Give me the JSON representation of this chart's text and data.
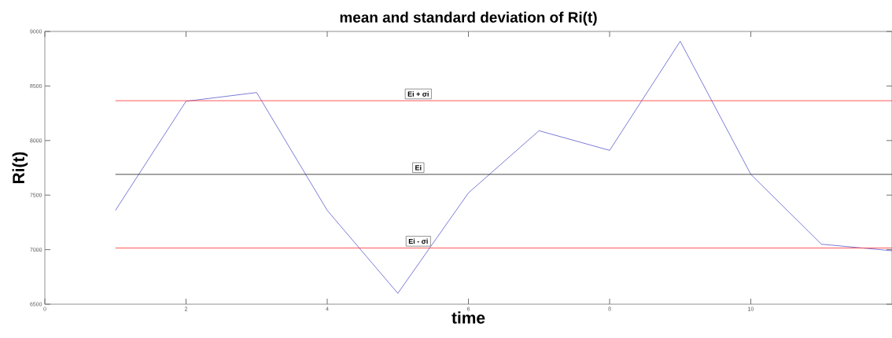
{
  "chart_data": {
    "type": "line",
    "title": "mean and standard deviation of Ri(t)",
    "xlabel": "time",
    "ylabel": "Ri(t)",
    "x": [
      1,
      2,
      3,
      4,
      5,
      6,
      7,
      8,
      9,
      10,
      11,
      12
    ],
    "series": [
      {
        "color": "#5a5acd",
        "values": [
          7360,
          8360,
          8440,
          7360,
          6600,
          7520,
          8090,
          7910,
          8910,
          7690,
          7050,
          6990
        ]
      }
    ],
    "xlim": [
      0,
      12
    ],
    "xticks": [
      0,
      2,
      4,
      6,
      8,
      10
    ],
    "ylim": [
      6500,
      9000
    ],
    "yticks": [
      6500,
      7000,
      7500,
      8000,
      8500,
      9000
    ],
    "ref_lines": [
      {
        "axis": "y",
        "value": 8365,
        "label": "Ei + σi",
        "color": "#ff3030"
      },
      {
        "axis": "y",
        "value": 7690,
        "label": "Ei",
        "color": "#202020"
      },
      {
        "axis": "y",
        "value": 7015,
        "label": "Ei - σi",
        "color": "#ff3030"
      }
    ],
    "marker": "none",
    "line_style": "solid"
  }
}
